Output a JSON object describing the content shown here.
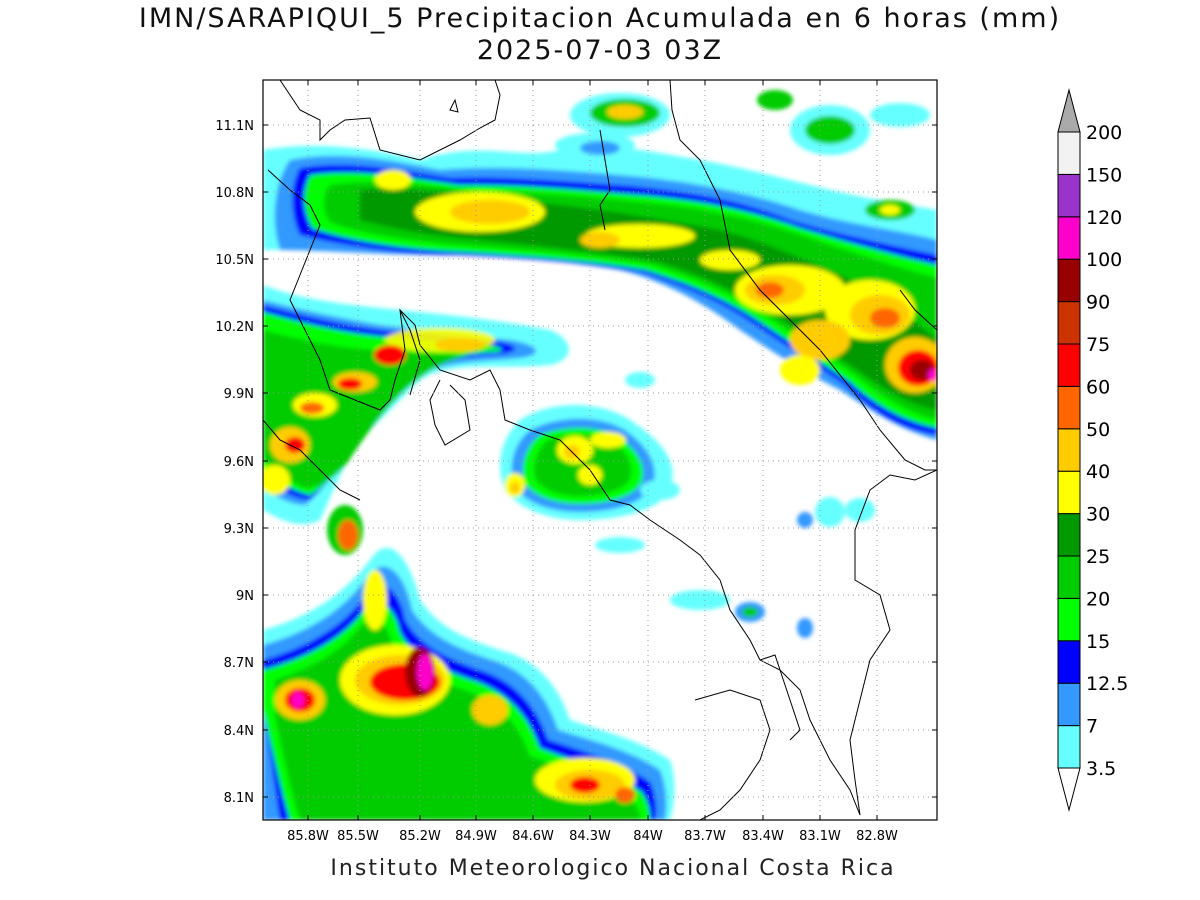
{
  "header": {
    "title": "IMN/SARAPIQUI_5 Precipitacion Acumulada en 6 horas (mm)",
    "subtitle": "2025-07-03 03Z"
  },
  "map": {
    "lat_ticks": [
      "11.1N",
      "10.8N",
      "10.5N",
      "10.2N",
      "9.9N",
      "9.6N",
      "9.3N",
      "9N",
      "8.7N",
      "8.4N",
      "8.1N"
    ],
    "lon_ticks": [
      "85.8W",
      "85.5W",
      "85.2W",
      "84.9W",
      "84.6W",
      "84.3W",
      "84W",
      "83.7W",
      "83.4W",
      "83.1W",
      "82.8W"
    ],
    "grid": "dotted"
  },
  "colorbar": {
    "labels": [
      "3.5",
      "7",
      "12.5",
      "15",
      "20",
      "25",
      "30",
      "40",
      "50",
      "60",
      "75",
      "90",
      "100",
      "120",
      "150",
      "200"
    ],
    "colors": [
      "#ffffff",
      "#66ffff",
      "#3399ff",
      "#0000ff",
      "#00ff00",
      "#00cc00",
      "#009900",
      "#ffff00",
      "#ffcc00",
      "#ff6600",
      "#ff0000",
      "#cc3300",
      "#990000",
      "#ff00cc",
      "#9933cc",
      "#f2f2f2",
      "#aaaaaa"
    ]
  },
  "footer": {
    "credit": "Instituto Meteorologico Nacional Costa Rica"
  }
}
